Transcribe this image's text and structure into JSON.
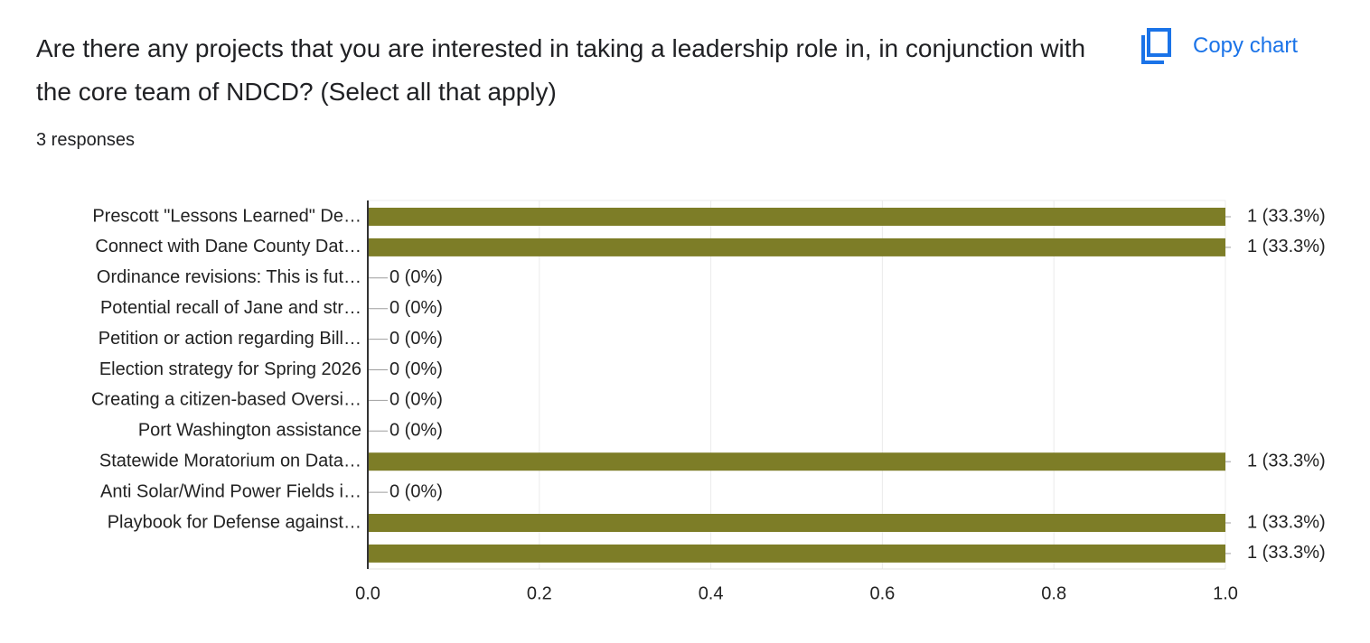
{
  "title": "Are there any projects that you are interested in taking a leadership role in, in conjunction with the core team of NDCD? (Select all that apply)",
  "subtitle": "3 responses",
  "copy_button": "Copy chart",
  "chart_data": {
    "type": "bar",
    "orientation": "horizontal",
    "categories": [
      "Prescott \"Lessons Learned\" De…",
      "Connect with Dane County Dat…",
      "Ordinance revisions: This is fut…",
      "Potential recall of Jane and str…",
      "Petition or action regarding Bill…",
      "Election strategy for Spring 2026",
      "Creating a citizen-based Oversi…",
      "Port Washington assistance",
      "Statewide Moratorium on Data…",
      "Anti Solar/Wind Power Fields i…",
      "Playbook for Defense against…",
      null
    ],
    "values": [
      1,
      1,
      0,
      0,
      0,
      0,
      0,
      0,
      1,
      0,
      1,
      1
    ],
    "value_labels": [
      "1 (33.3%)",
      "1 (33.3%)",
      "0 (0%)",
      "0 (0%)",
      "0 (0%)",
      "0 (0%)",
      "0 (0%)",
      "0 (0%)",
      "1 (33.3%)",
      "0 (0%)",
      "1 (33.3%)",
      "1 (33.3%)"
    ],
    "color": "#7d7d27",
    "xlim": [
      0,
      1
    ],
    "xticks": [
      {
        "value": 0,
        "label": "0.0"
      },
      0.2,
      0.4,
      0.6,
      0.8,
      {
        "value": 1,
        "label": "1.0"
      }
    ],
    "grid": true
  }
}
